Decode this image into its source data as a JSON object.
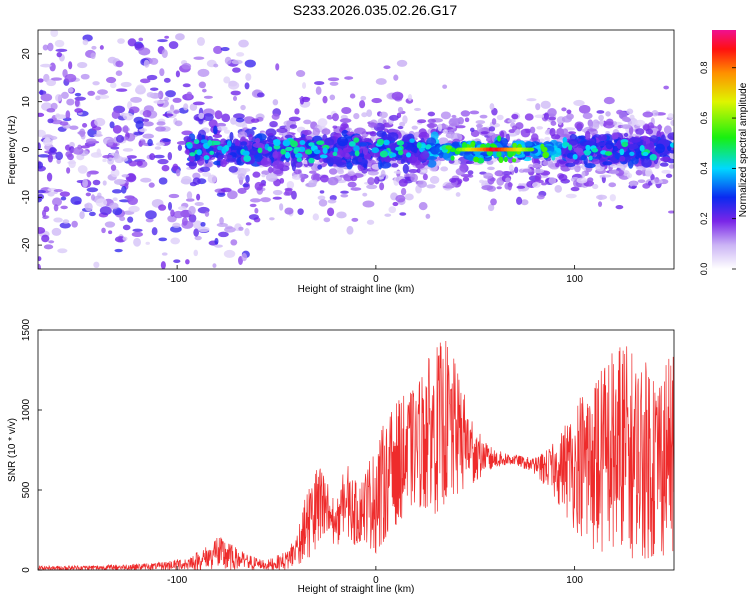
{
  "title": "S233.2026.035.02.26.G17",
  "chart_data": [
    {
      "type": "heatmap",
      "title": "S233.2026.035.02.26.G17",
      "xlabel": "Height of straight line (km)",
      "ylabel": "Frequency (Hz)",
      "xlim": [
        -170,
        150
      ],
      "ylim": [
        -25,
        25
      ],
      "xticks": [
        -100,
        0,
        100
      ],
      "yticks": [
        -20,
        -10,
        0,
        10,
        20
      ],
      "colorbar": {
        "label": "Normalized spectral amplitude",
        "range": [
          0,
          0.95
        ],
        "ticks": [
          0.0,
          0.2,
          0.4,
          0.6,
          0.8
        ],
        "tick_labels": [
          "0.0",
          "0.2",
          "0.4",
          "0.6",
          "0.8"
        ]
      },
      "description_values": {
        "ridge_frequency_hz": 0,
        "peak_amplitude": 0.95,
        "peak_height_km": [
          50,
          70
        ]
      }
    },
    {
      "type": "line",
      "xlabel": "Height of straight line (km)",
      "ylabel": "SNR (10 * v/v)",
      "xlim": [
        -170,
        150
      ],
      "ylim": [
        0,
        1500
      ],
      "xticks": [
        -100,
        0,
        100
      ],
      "yticks": [
        0,
        500,
        1000,
        1500
      ],
      "color": "#ee2b2b",
      "envelope": {
        "x": [
          -170,
          -140,
          -110,
          -95,
          -85,
          -80,
          -75,
          -65,
          -55,
          -45,
          -40,
          -35,
          -30,
          -25,
          -20,
          -15,
          -10,
          -5,
          0,
          5,
          10,
          15,
          20,
          25,
          30,
          35,
          40,
          45,
          50,
          55,
          60,
          70,
          80,
          90,
          100,
          110,
          120,
          125,
          130,
          140,
          150
        ],
        "upper": [
          25,
          30,
          45,
          80,
          150,
          220,
          180,
          100,
          60,
          120,
          230,
          480,
          680,
          600,
          400,
          700,
          550,
          650,
          800,
          950,
          1050,
          1100,
          1150,
          1300,
          1400,
          1450,
          1300,
          1100,
          900,
          800,
          750,
          720,
          700,
          800,
          1050,
          1250,
          1400,
          1450,
          1350,
          1300,
          1350
        ],
        "lower": [
          0,
          0,
          0,
          0,
          0,
          10,
          0,
          0,
          0,
          0,
          30,
          60,
          100,
          180,
          150,
          200,
          150,
          180,
          80,
          200,
          280,
          350,
          400,
          380,
          350,
          420,
          450,
          500,
          550,
          600,
          640,
          660,
          600,
          450,
          250,
          120,
          80,
          70,
          60,
          80,
          100
        ]
      }
    }
  ]
}
